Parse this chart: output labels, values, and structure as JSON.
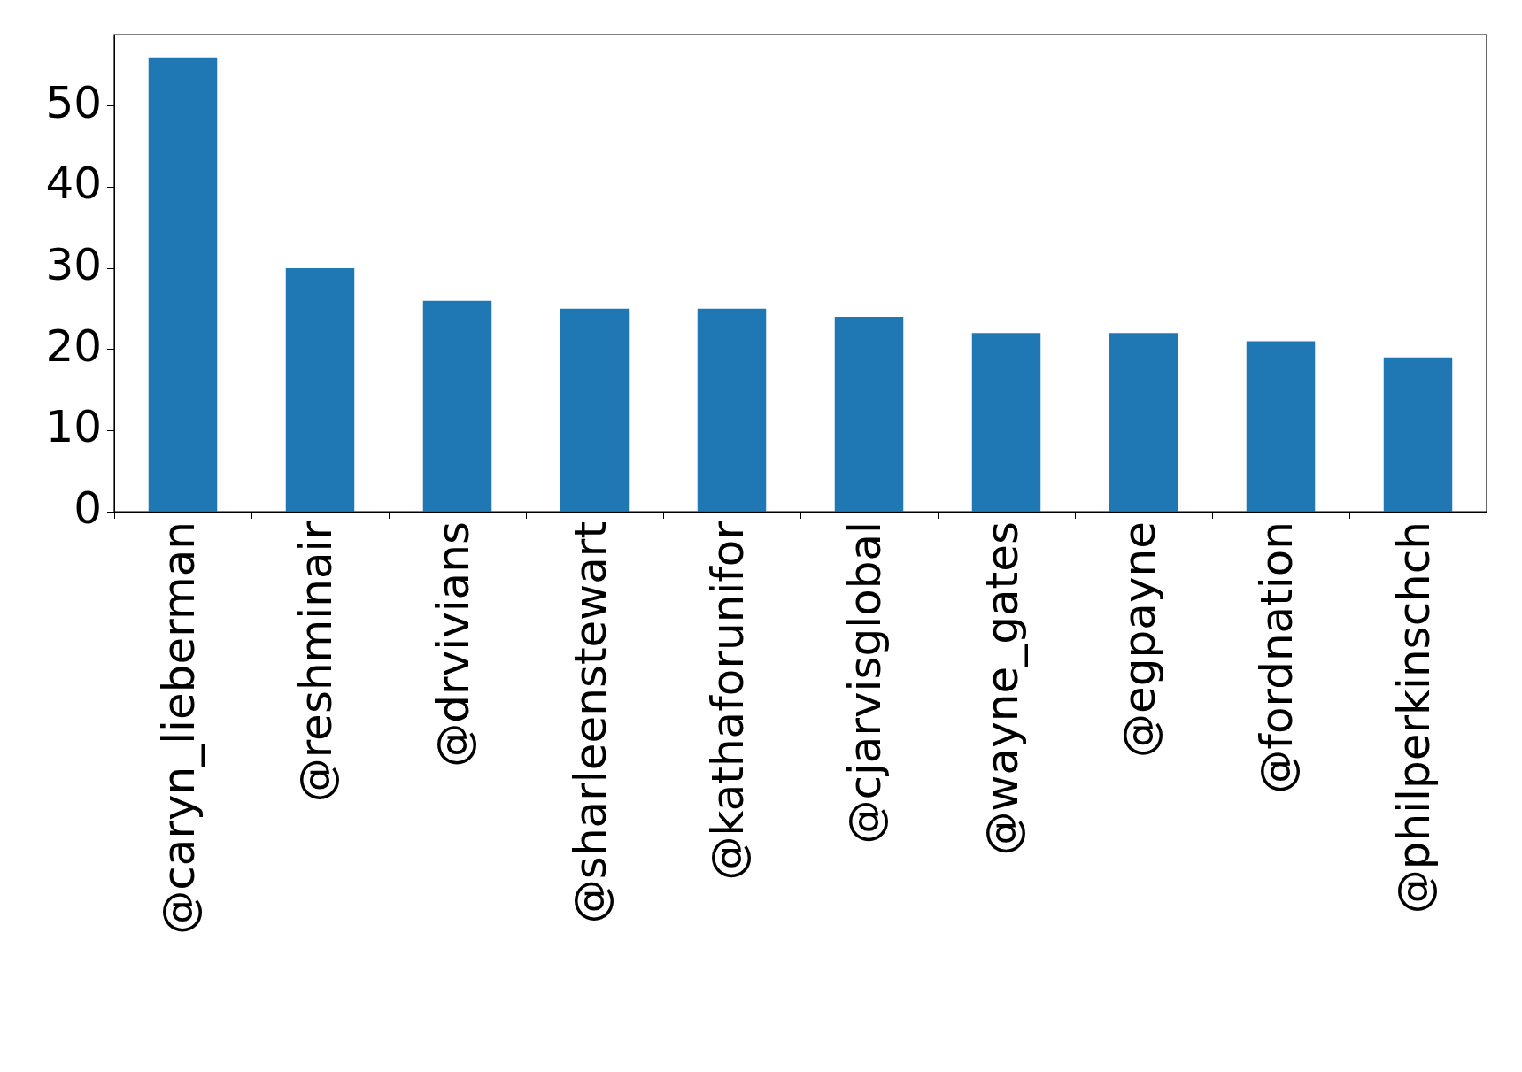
{
  "chart_data": {
    "type": "bar",
    "categories": [
      "@caryn_lieberman",
      "@reshminair",
      "@drvivians",
      "@sharleenstewart",
      "@kathaforunifor",
      "@cjarvisglobal",
      "@wayne_gates",
      "@egpayne",
      "@fordnation",
      "@philperkinschch"
    ],
    "values": [
      56,
      30,
      26,
      25,
      25,
      24,
      22,
      22,
      21,
      19
    ],
    "color": "#1f77b4",
    "ylim": [
      0,
      58.8
    ],
    "yticks": [
      0,
      10,
      20,
      30,
      40,
      50
    ],
    "grid": false,
    "legend": false
  }
}
